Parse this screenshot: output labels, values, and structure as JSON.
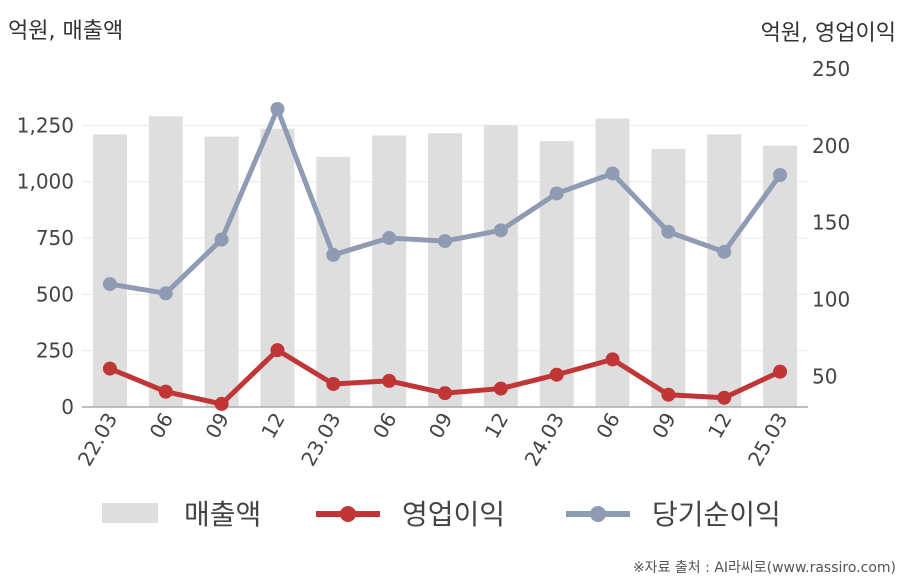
{
  "chart_data": {
    "type": "bar+line",
    "categories": [
      "22.03",
      "06",
      "09",
      "12",
      "23.03",
      "06",
      "09",
      "12",
      "24.03",
      "06",
      "09",
      "12",
      "25.03"
    ],
    "left_axis": {
      "label": "억원, 매출액",
      "ylim": [
        0,
        1500
      ],
      "ticks": [
        0,
        250,
        500,
        750,
        1000,
        1250
      ],
      "tick_labels": [
        "0",
        "250",
        "500",
        "750",
        "1,000",
        "1,250"
      ]
    },
    "right_axis": {
      "label": "억원, 영업이익",
      "ylim": [
        30,
        250
      ],
      "ticks": [
        50,
        100,
        150,
        200,
        250
      ],
      "tick_labels": [
        "50",
        "100",
        "150",
        "200",
        "250"
      ]
    },
    "series": [
      {
        "name": "매출액",
        "type": "bar",
        "axis": "left",
        "color": "#dedede",
        "values": [
          1210,
          1290,
          1200,
          1235,
          1110,
          1205,
          1215,
          1250,
          1180,
          1280,
          1145,
          1210,
          1160
        ]
      },
      {
        "name": "영업이익",
        "type": "line",
        "axis": "right",
        "color": "#c03535",
        "values": [
          55,
          40,
          32,
          67,
          45,
          47,
          39,
          42,
          51,
          61,
          38,
          36,
          53
        ]
      },
      {
        "name": "당기순이익",
        "type": "line",
        "axis": "right",
        "color": "#8f9bb3",
        "values": [
          110,
          104,
          139,
          224,
          129,
          140,
          138,
          145,
          169,
          182,
          144,
          131,
          181
        ]
      }
    ],
    "grid": true,
    "legend": "bottom"
  },
  "source": "※자료 출처 : AI라씨로(www.rassiro.com)"
}
